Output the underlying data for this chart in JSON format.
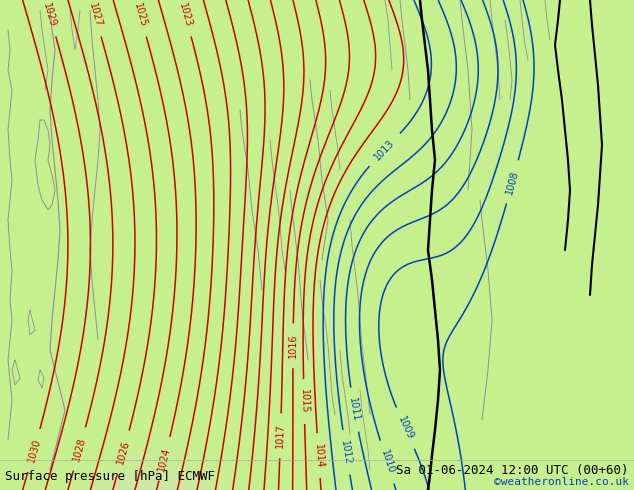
{
  "title_left": "Surface pressure [hPa] ECMWF",
  "title_right": "Sa 01-06-2024 12:00 UTC (00+60)",
  "title_right2": "©weatheronline.co.uk",
  "bg_color": "#e0e0e0",
  "land_color": "#c8f090",
  "sea_color": "#d8d8d8",
  "fig_width": 6.34,
  "fig_height": 4.9,
  "dpi": 100,
  "bottom_text_color": "#000000",
  "red_contour_color": "#cc0000",
  "blue_contour_color": "#0044bb",
  "black_coast_color": "#000000",
  "gray_coast_color": "#909090",
  "font_size_bottom": 9,
  "font_size_labels": 7
}
